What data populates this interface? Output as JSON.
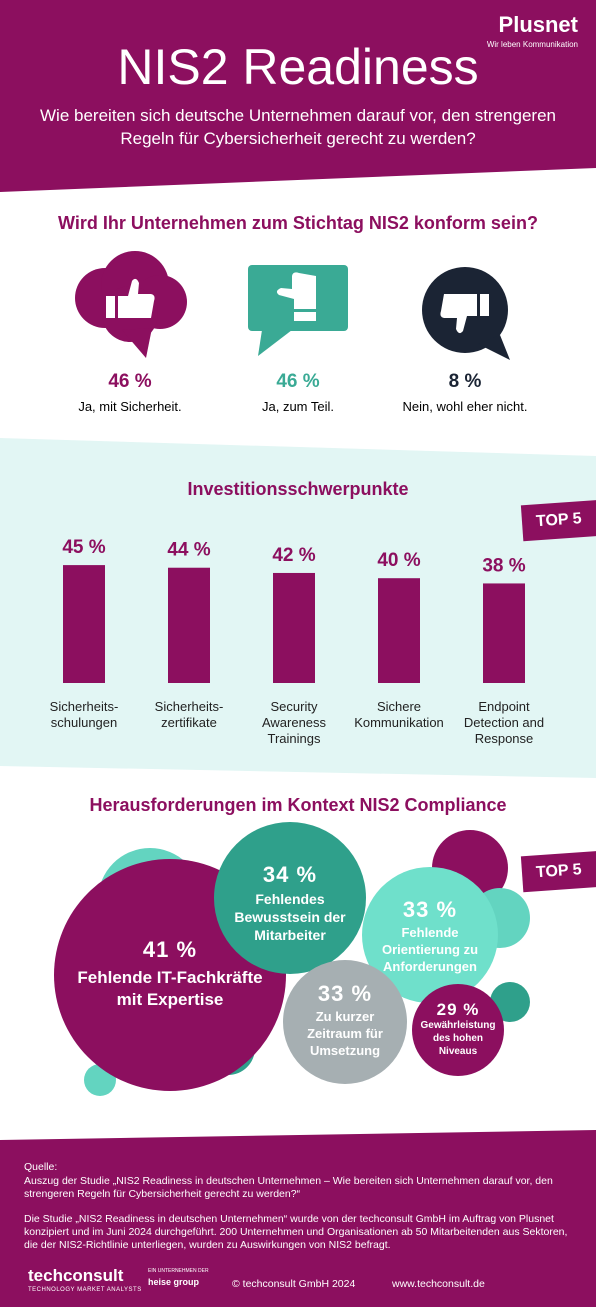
{
  "header": {
    "brand": "Plusnet",
    "brand_tagline": "Wir leben Kommunikation",
    "title": "NIS2 Readiness",
    "subtitle": "Wie bereiten sich deutsche Unternehmen darauf vor, den strengeren Regeln für Cybersicherheit gerecht zu werden?"
  },
  "poll": {
    "question": "Wird Ihr Unternehmen zum Stichtag NIS2 konform sein?",
    "items": [
      {
        "value": "46 %",
        "label": "Ja, mit Sicherheit."
      },
      {
        "value": "46 %",
        "label": "Ja, zum Teil."
      },
      {
        "value": "8 %",
        "label": "Nein, wohl eher nicht."
      }
    ]
  },
  "chart_data": {
    "type": "bar",
    "title": "Investitionsschwerpunkte",
    "badge": "TOP 5",
    "categories": [
      "Sicherheits-schulungen",
      "Sicherheits-zertifikate",
      "Security Awareness Trainings",
      "Sichere Kommunikation",
      "Endpoint Detection and Response"
    ],
    "values": [
      45,
      44,
      42,
      40,
      38
    ],
    "value_labels": [
      "45 %",
      "44 %",
      "42 %",
      "40 %",
      "38 %"
    ],
    "color": "#8c0f5f"
  },
  "challenges": {
    "title": "Herausforderungen im Kontext NIS2 Compliance",
    "badge": "TOP 5",
    "items": [
      {
        "value": "41 %",
        "label": "Fehlende IT-Fachkräfte mit Expertise"
      },
      {
        "value": "34 %",
        "label": "Fehlendes Bewusstsein der Mitarbeiter"
      },
      {
        "value": "33 %",
        "label": "Fehlende Orientierung zu Anforderungen"
      },
      {
        "value": "33 %",
        "label": "Zu kurzer Zeitraum für Umsetzung"
      },
      {
        "value": "29 %",
        "label": "Gewährleistung des hohen Niveaus"
      }
    ]
  },
  "footer": {
    "source_label": "Quelle:",
    "source": "Auszug der Studie „NIS2 Readiness in deutschen Unternehmen – Wie bereiten sich Unternehmen darauf vor, den strengeren Regeln für Cybersicherheit gerecht zu werden?“",
    "study_note": "Die Studie „NIS2 Readiness in deutschen Unternehmen“ wurde von der techconsult GmbH im Auftrag von Plusnet konzipiert und im Juni 2024 durchgeführt. 200 Unternehmen und Organisationen ab 50 Mitarbeitenden aus Sektoren, die der NIS2-Richtlinie unterliegen, wurden zu Auswirkungen von NIS2 befragt.",
    "logo": "techconsult",
    "logo_tagline": "TECHNOLOGY MARKET ANALYSTS",
    "logo_partner_prefix": "EIN UNTERNEHMEN DER",
    "logo_partner": "heise group",
    "copyright": "© techconsult GmbH 2024",
    "url": "www.techconsult.de"
  }
}
